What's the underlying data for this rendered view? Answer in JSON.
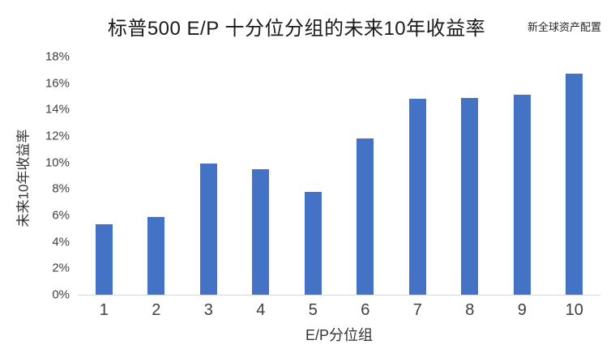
{
  "header": {
    "title": "标普500 E/P 十分位分组的未来10年收益率",
    "watermark": "新全球资产配置"
  },
  "chart_data": {
    "type": "bar",
    "title": "标普500 E/P 十分位分组的未来10年收益率",
    "categories": [
      "1",
      "2",
      "3",
      "4",
      "5",
      "6",
      "7",
      "8",
      "9",
      "10"
    ],
    "values": [
      5.3,
      5.9,
      9.9,
      9.5,
      7.8,
      11.8,
      14.8,
      14.9,
      15.1,
      16.7
    ],
    "value_unit": "%",
    "xlabel": "E/P分位组",
    "ylabel": "未来10年收益率",
    "ylim": [
      0,
      18
    ],
    "ytick_step": 2,
    "ytick_labels": [
      "0%",
      "2%",
      "4%",
      "6%",
      "8%",
      "10%",
      "12%",
      "14%",
      "16%",
      "18%"
    ],
    "grid": false,
    "legend_position": "none",
    "bar_color": "#4472C4",
    "axis_line_color": "#D9D9D9",
    "tick_text_color": "#404040"
  }
}
